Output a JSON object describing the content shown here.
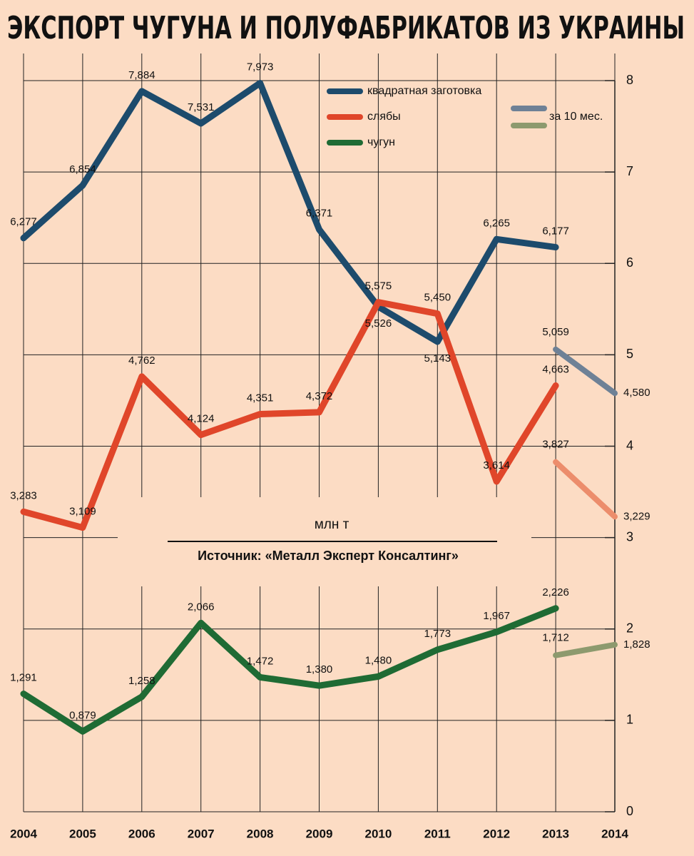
{
  "chart_data": {
    "type": "line",
    "title": "ЭКСПОРТ ЧУГУНА И ПОЛУФАБРИКАТОВ ИЗ УКРАИНЫ",
    "y_axis_label": "млн т",
    "source": "Источник: «Металл Эксперт Консалтинг»",
    "categories": [
      "2004",
      "2005",
      "2006",
      "2007",
      "2008",
      "2009",
      "2010",
      "2011",
      "2012",
      "2013",
      "2014"
    ],
    "ylim": [
      0,
      8
    ],
    "yticks": [
      0,
      1,
      2,
      3,
      4,
      5,
      6,
      7,
      8
    ],
    "grid": true,
    "legend_position": "top right",
    "series": [
      {
        "name": "квадратная заготовка",
        "color": "#1d4b6c",
        "values": [
          6.277,
          6.854,
          7.884,
          7.531,
          7.973,
          6.371,
          5.526,
          5.143,
          6.265,
          6.177,
          null
        ],
        "value_labels": [
          "6,277",
          "6,854",
          "7,884",
          "7,531",
          "7,973",
          "6,371",
          "5,526",
          "5,143",
          "6,265",
          "6,177",
          null
        ]
      },
      {
        "name": "слябы",
        "color": "#e0462a",
        "values": [
          3.283,
          3.109,
          4.762,
          4.124,
          4.351,
          4.372,
          5.575,
          5.45,
          3.614,
          4.663,
          null
        ],
        "value_labels": [
          "3,283",
          "3,109",
          "4,762",
          "4,124",
          "4,351",
          "4,372",
          "5,575",
          "5,450",
          "3,614",
          "4,663",
          null
        ]
      },
      {
        "name": "чугун",
        "color": "#1f6b34",
        "values": [
          1.291,
          0.879,
          1.258,
          2.066,
          1.472,
          1.38,
          1.48,
          1.773,
          1.967,
          2.226,
          null
        ],
        "value_labels": [
          "1,291",
          "0,879",
          "1,258",
          "2,066",
          "1,472",
          "1,380",
          "1,480",
          "1,773",
          "1,967",
          "2,226",
          null
        ]
      }
    ],
    "partial_label": "за 10 мес.",
    "partial_series": [
      {
        "color": "#6e8196",
        "values": [
          null,
          null,
          null,
          null,
          null,
          null,
          null,
          null,
          null,
          5.059,
          4.58
        ],
        "value_labels": [
          null,
          null,
          null,
          null,
          null,
          null,
          null,
          null,
          null,
          "5,059",
          "4,580"
        ]
      },
      {
        "color": "#ec8d6c",
        "values": [
          null,
          null,
          null,
          null,
          null,
          null,
          null,
          null,
          null,
          3.827,
          3.229
        ],
        "value_labels": [
          null,
          null,
          null,
          null,
          null,
          null,
          null,
          null,
          null,
          "3,827",
          "3,229"
        ]
      },
      {
        "color": "#8d9a6e",
        "values": [
          null,
          null,
          null,
          null,
          null,
          null,
          null,
          null,
          null,
          1.712,
          1.828
        ],
        "value_labels": [
          null,
          null,
          null,
          null,
          null,
          null,
          null,
          null,
          null,
          "1,712",
          "1,828"
        ]
      }
    ]
  }
}
